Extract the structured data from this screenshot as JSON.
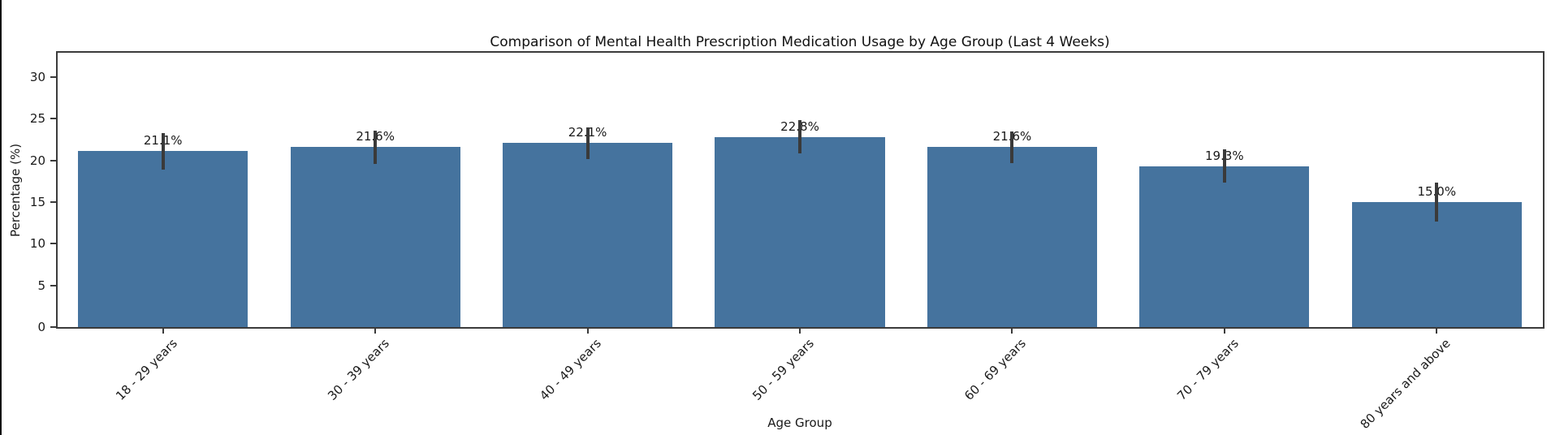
{
  "chart_data": {
    "type": "bar",
    "title": "Comparison of Mental Health Prescription Medication Usage by Age Group (Last 4 Weeks)",
    "xlabel": "Age Group",
    "ylabel": "Percentage (%)",
    "categories": [
      "18 - 29 years",
      "30 - 39 years",
      "40 - 49 years",
      "50 - 59 years",
      "60 - 69 years",
      "70 - 79 years",
      "80 years and above"
    ],
    "values": [
      21.1,
      21.6,
      22.1,
      22.8,
      21.6,
      19.3,
      15.0
    ],
    "value_labels": [
      "21.1%",
      "21.6%",
      "22.1%",
      "22.8%",
      "21.6%",
      "19.3%",
      "15.0%"
    ],
    "error_bars": [
      2.2,
      2.0,
      1.9,
      2.0,
      1.9,
      2.0,
      2.3
    ],
    "yticks": [
      0,
      5,
      10,
      15,
      20,
      25,
      30
    ],
    "ylim": [
      0,
      33
    ],
    "grid": false,
    "legend": null,
    "bar_color": "#45739e",
    "error_color": "#3a3a3a",
    "spine_color": "#3b3b3b"
  }
}
